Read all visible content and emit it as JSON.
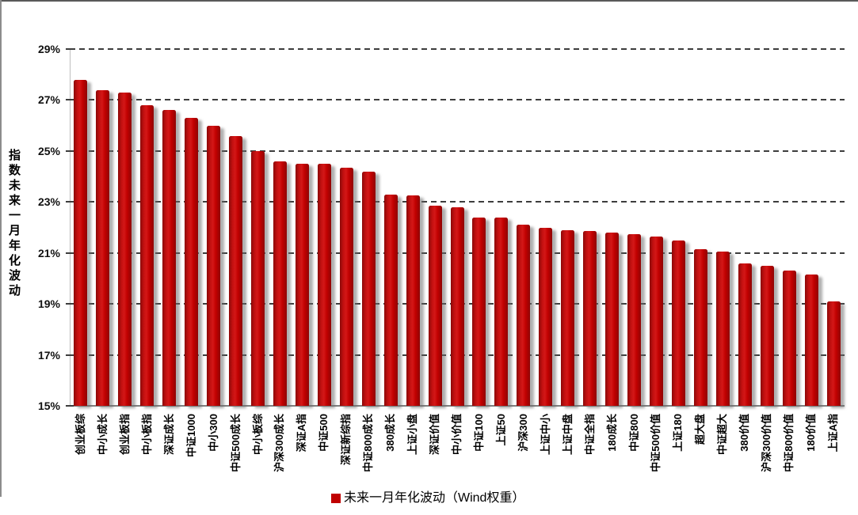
{
  "chart_data": {
    "type": "bar",
    "title": "",
    "y_axis_title": "指数未来一月年化波动",
    "legend": "未来一月年化波动（Wind权重）",
    "legend_position": "bottom center",
    "grid": "horizontal dashed",
    "ylim": [
      15,
      29
    ],
    "ytick_labels": [
      "15%",
      "17%",
      "19%",
      "21%",
      "23%",
      "25%",
      "27%",
      "29%"
    ],
    "categories": [
      "创业板综",
      "中小成长",
      "创业板指",
      "中小板指",
      "深证成长",
      "中证1000",
      "中小300",
      "中证500成长",
      "中小板综",
      "沪深300成长",
      "深证A指",
      "中证500",
      "深证新综指",
      "中证800成长",
      "380成长",
      "上证小盘",
      "深证价值",
      "中小价值",
      "中证100",
      "上证50",
      "沪深300",
      "上证中小",
      "上证中盘",
      "中证全指",
      "180成长",
      "中证800",
      "中证500价值",
      "上证180",
      "超大盘",
      "中证超大",
      "380价值",
      "沪深300价值",
      "中证800价值",
      "180价值",
      "上证A指"
    ],
    "series": [
      {
        "name": "未来一月年化波动（Wind权重）",
        "values": [
          27.8,
          27.4,
          27.3,
          26.8,
          26.6,
          26.3,
          26.0,
          25.6,
          25.0,
          24.6,
          24.5,
          24.5,
          24.35,
          24.2,
          23.3,
          23.25,
          22.85,
          22.8,
          22.4,
          22.4,
          22.1,
          22.0,
          21.9,
          21.85,
          21.8,
          21.75,
          21.65,
          21.5,
          21.15,
          21.05,
          20.6,
          20.5,
          20.3,
          20.15,
          19.1
        ]
      }
    ],
    "unit": "%"
  },
  "colors": {
    "bar": "#C00000",
    "gridline": "#3D3D3D",
    "axis": "#7F7F7F",
    "text": "#000000"
  }
}
